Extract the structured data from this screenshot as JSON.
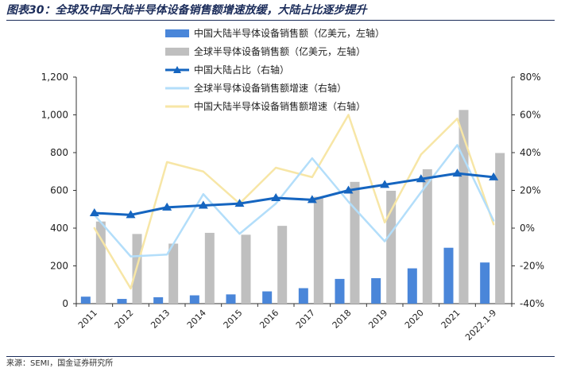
{
  "header": {
    "title": "图表30：全球及中国大陆半导体设备销售额增速放缓，大陆占比逐步提升"
  },
  "footer": {
    "source": "来源：SEMI，国金证券研究所"
  },
  "colors": {
    "china_sales": "#4a86d9",
    "global_sales": "#bfbfbf",
    "china_share": "#1565c0",
    "global_growth": "#b3defa",
    "china_growth": "#f7e6a6"
  },
  "chart_data": {
    "type": "bar",
    "categories": [
      "2011",
      "2012",
      "2013",
      "2014",
      "2015",
      "2016",
      "2017",
      "2018",
      "2019",
      "2020",
      "2021",
      "2022.1-9"
    ],
    "left_axis": {
      "ylim": [
        0,
        1200
      ],
      "ticks": [
        "0",
        "200",
        "400",
        "600",
        "800",
        "1,000",
        "1,200"
      ]
    },
    "right_axis": {
      "ylim": [
        -40,
        80
      ],
      "ticks": [
        "-40%",
        "-20%",
        "0%",
        "20%",
        "40%",
        "60%",
        "80%"
      ]
    },
    "grid": false,
    "legend_position": "top",
    "series": [
      {
        "name": "中国大陆半导体设备销售额（亿美元，左轴）",
        "type": "bar",
        "axis": "left",
        "values": [
          37,
          25,
          34,
          44,
          49,
          65,
          82,
          131,
          135,
          187,
          296,
          218
        ]
      },
      {
        "name": "全球半导体设备销售额（亿美元，左轴）",
        "type": "bar",
        "axis": "left",
        "values": [
          435,
          369,
          318,
          375,
          365,
          412,
          566,
          645,
          598,
          712,
          1026,
          798
        ]
      },
      {
        "name": "中国大陆占比（右轴）",
        "type": "line",
        "marker": "triangle",
        "axis": "right",
        "values": [
          8,
          7,
          11,
          12,
          13,
          16,
          15,
          20,
          23,
          26,
          29,
          27
        ]
      },
      {
        "name": "全球半导体设备销售额增速（右轴）",
        "type": "line",
        "axis": "right",
        "values": [
          7,
          -15,
          -14,
          18,
          -3,
          13,
          37,
          14,
          -7,
          19,
          44,
          4
        ]
      },
      {
        "name": "中国大陆半导体设备销售额增速（右轴）",
        "type": "line",
        "axis": "right",
        "values": [
          0,
          -32,
          35,
          30,
          13,
          32,
          27,
          60,
          3,
          39,
          58,
          2
        ]
      }
    ]
  }
}
